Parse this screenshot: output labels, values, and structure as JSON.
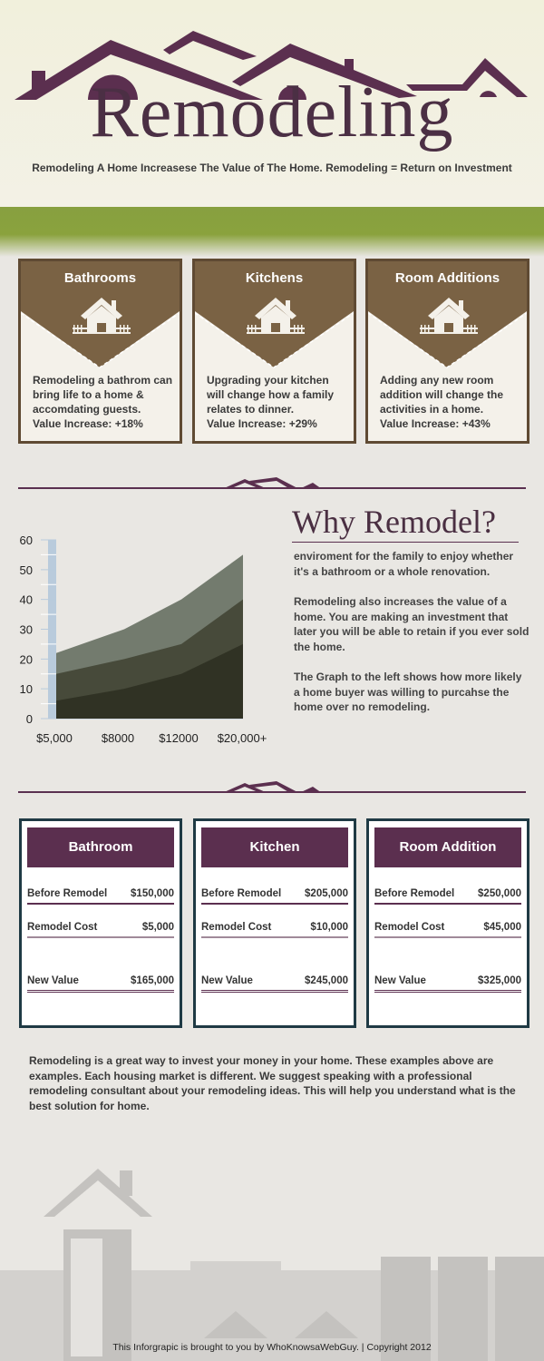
{
  "header": {
    "title": "Remodeling",
    "subtitle": "Remodeling A Home Increasese The Value of The Home. Remodeling = Return on Investment"
  },
  "colors": {
    "brand_purple": "#5b2f4f",
    "card_brown": "#7a6244",
    "grass": "#87a040",
    "table_border": "#1f3a44"
  },
  "cards": [
    {
      "title": "Bathrooms",
      "icon": "house-icon",
      "text": "Remodeling a bathrom can bring life to a home & accomdating guests.",
      "value": "Value Increase: +18%"
    },
    {
      "title": "Kitchens",
      "icon": "house-icon",
      "text": "Upgrading your kitchen will change how a family relates to dinner.",
      "value": "Value Increase: +29%"
    },
    {
      "title": "Room Additions",
      "icon": "house-icon",
      "text": "Adding any new room addition will change the activities in a home.",
      "value": "Value Increase: +43%"
    }
  ],
  "why": {
    "title": "Why Remodel?",
    "paragraphs": [
      "enviroment for the family to enjoy whether it's a bathroom or a whole renovation.",
      "Remodeling also increases the value of a home. You are making an investment that later you will be able to retain if you ever sold the home.",
      "The Graph to the left shows how more likely a home buyer was willing to purcahse the home over no remodeling."
    ]
  },
  "chart_data": {
    "type": "area",
    "categories": [
      "$5,000",
      "$8000",
      "$12000",
      "$20,000+"
    ],
    "series": [
      {
        "values": [
          22,
          30,
          40,
          55
        ],
        "color": "#737b6e"
      },
      {
        "values": [
          15,
          20,
          25,
          40
        ],
        "color": "#474a3a"
      },
      {
        "values": [
          6,
          10,
          15,
          25
        ],
        "color": "#303224"
      }
    ],
    "ylim": [
      0,
      60
    ],
    "yticks": [
      "0",
      "10",
      "20",
      "30",
      "40",
      "50",
      "60"
    ],
    "grid": false
  },
  "tables": [
    {
      "title": "Bathroom",
      "rows": [
        {
          "label": "Before Remodel",
          "value": "$150,000"
        },
        {
          "label": "Remodel Cost",
          "value": "$5,000"
        },
        {
          "label": "New Value",
          "value": "$165,000"
        }
      ]
    },
    {
      "title": "Kitchen",
      "rows": [
        {
          "label": "Before Remodel",
          "value": "$205,000"
        },
        {
          "label": "Remodel Cost",
          "value": "$10,000"
        },
        {
          "label": "New Value",
          "value": "$245,000"
        }
      ]
    },
    {
      "title": "Room Addition",
      "rows": [
        {
          "label": "Before Remodel",
          "value": "$250,000"
        },
        {
          "label": "Remodel Cost",
          "value": "$45,000"
        },
        {
          "label": "New Value",
          "value": "$325,000"
        }
      ]
    }
  ],
  "closing": "Remodeling is a great way to invest your money in your home. These examples above are examples. Each housing market is different. We suggest speaking with a professional remodeling consultant about your remodeling ideas. This will help you understand what is the best solution for home.",
  "footer": "This Inforgrapic is brought to you by WhoKnowsaWebGuy. | Copyright 2012"
}
